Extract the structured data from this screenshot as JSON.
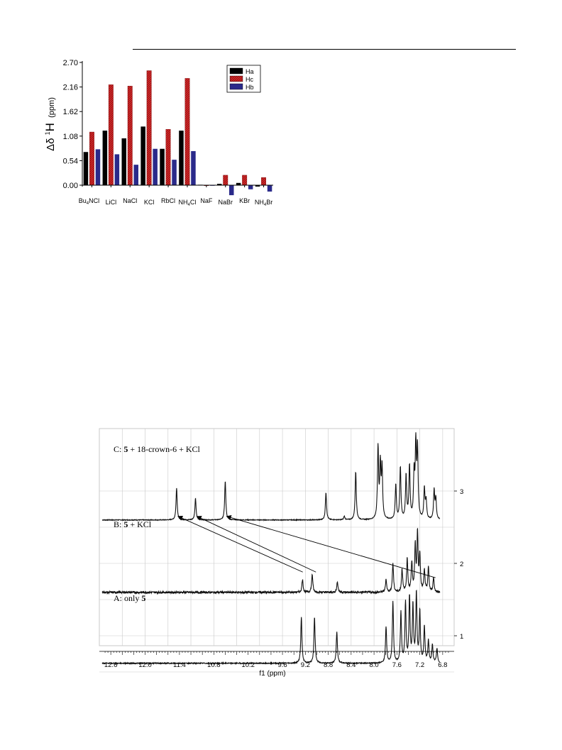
{
  "colors": {
    "Ha": "#000000",
    "Hc": "#d62728",
    "Hb": "#2a2a8a",
    "spectrum": "#111111",
    "grid": "#c9c9c9"
  },
  "chart_data": [
    {
      "type": "bar",
      "ylabel_main": "Δδ ",
      "ylabel_sup": "1",
      "ylabel_tail": "H",
      "ylabel_unit": "(ppm)",
      "ylim": [
        0,
        2.7
      ],
      "yticks": [
        "2.70",
        "2.16",
        "1.62",
        "1.08",
        "0.54",
        "0.00"
      ],
      "ytick_values": [
        2.7,
        2.16,
        1.62,
        1.08,
        0.54,
        0.0
      ],
      "categories": [
        {
          "main": "Bu",
          "sub": "4",
          "tail": "NCl"
        },
        {
          "main": "LiCl",
          "sub": "",
          "tail": ""
        },
        {
          "main": "NaCl",
          "sub": "",
          "tail": ""
        },
        {
          "main": "KCl",
          "sub": "",
          "tail": ""
        },
        {
          "main": "RbCl",
          "sub": "",
          "tail": ""
        },
        {
          "main": "NH",
          "sub": "4",
          "tail": "Cl"
        },
        {
          "main": "NaF",
          "sub": "",
          "tail": ""
        },
        {
          "main": "NaBr",
          "sub": "",
          "tail": ""
        },
        {
          "main": "KBr",
          "sub": "",
          "tail": ""
        },
        {
          "main": "NH",
          "sub": "4",
          "tail": "Br"
        }
      ],
      "series": [
        {
          "name": "Ha",
          "values": [
            0.73,
            1.2,
            1.03,
            1.29,
            0.8,
            1.2,
            0.01,
            0.03,
            0.05,
            -0.03
          ]
        },
        {
          "name": "Hc",
          "values": [
            1.17,
            2.21,
            2.18,
            2.52,
            1.23,
            2.35,
            0.0,
            0.22,
            0.22,
            0.17
          ]
        },
        {
          "name": "Hb",
          "values": [
            0.79,
            0.68,
            0.45,
            0.8,
            0.56,
            0.75,
            -0.01,
            -0.22,
            -0.09,
            -0.14
          ]
        }
      ],
      "legend_position": "top-right"
    },
    {
      "type": "line",
      "title": "",
      "xlabel": "f1 (ppm)",
      "xlim": [
        12.8,
        6.6
      ],
      "xticks": [
        "12.6",
        "12.0",
        "11.4",
        "10.8",
        "10.2",
        "9.6",
        "9.2",
        "8.8",
        "8.4",
        "8.0",
        "7.6",
        "7.2",
        "6.8"
      ],
      "xtick_values": [
        12.6,
        12.0,
        11.4,
        10.8,
        10.2,
        9.6,
        9.2,
        8.8,
        8.4,
        8.0,
        7.6,
        7.2,
        6.8
      ],
      "yticks": [
        "3",
        "2",
        "1"
      ],
      "yaxis_side": "right",
      "grid": true,
      "series": [
        {
          "label_prefix": "C: ",
          "label_bold": "5",
          "label_suffix": " + 18-crown-6 + KCl",
          "offset": 2.6,
          "noise": 0.005,
          "peaks": [
            {
              "ppm": 11.45,
              "h": 0.44
            },
            {
              "ppm": 11.12,
              "h": 0.3
            },
            {
              "ppm": 10.6,
              "h": 0.54
            },
            {
              "ppm": 8.84,
              "h": 0.38
            },
            {
              "ppm": 8.52,
              "h": 0.05
            },
            {
              "ppm": 8.32,
              "h": 0.67
            },
            {
              "ppm": 7.93,
              "h": 0.98
            },
            {
              "ppm": 7.89,
              "h": 0.72
            },
            {
              "ppm": 7.86,
              "h": 0.7
            },
            {
              "ppm": 7.62,
              "h": 0.48
            },
            {
              "ppm": 7.54,
              "h": 0.72
            },
            {
              "ppm": 7.44,
              "h": 0.6
            },
            {
              "ppm": 7.38,
              "h": 0.73
            },
            {
              "ppm": 7.3,
              "h": 0.6
            },
            {
              "ppm": 7.27,
              "h": 0.98
            },
            {
              "ppm": 7.24,
              "h": 0.95
            },
            {
              "ppm": 7.12,
              "h": 0.42
            },
            {
              "ppm": 7.09,
              "h": 0.25
            },
            {
              "ppm": 6.95,
              "h": 0.4
            },
            {
              "ppm": 6.92,
              "h": 0.28
            }
          ]
        },
        {
          "label_prefix": "B: ",
          "label_bold": "5",
          "label_suffix": " + KCl",
          "offset": 1.6,
          "noise": 0.014,
          "peaks": [
            {
              "ppm": 9.25,
              "h": 0.18
            },
            {
              "ppm": 9.08,
              "h": 0.25
            },
            {
              "ppm": 8.64,
              "h": 0.15
            },
            {
              "ppm": 7.79,
              "h": 0.18
            },
            {
              "ppm": 7.67,
              "h": 0.4
            },
            {
              "ppm": 7.51,
              "h": 0.32
            },
            {
              "ppm": 7.42,
              "h": 0.46
            },
            {
              "ppm": 7.34,
              "h": 0.4
            },
            {
              "ppm": 7.28,
              "h": 0.62
            },
            {
              "ppm": 7.24,
              "h": 0.78
            },
            {
              "ppm": 7.2,
              "h": 0.5
            },
            {
              "ppm": 7.12,
              "h": 0.3
            },
            {
              "ppm": 7.05,
              "h": 0.34
            },
            {
              "ppm": 6.96,
              "h": 0.2
            }
          ]
        },
        {
          "label_prefix": "A: only ",
          "label_bold": "5",
          "label_suffix": "",
          "offset": 0.62,
          "noise": 0.007,
          "peaks": [
            {
              "ppm": 9.27,
              "h": 0.64
            },
            {
              "ppm": 9.04,
              "h": 0.64
            },
            {
              "ppm": 8.65,
              "h": 0.44
            },
            {
              "ppm": 7.79,
              "h": 0.5
            },
            {
              "ppm": 7.67,
              "h": 0.85
            },
            {
              "ppm": 7.53,
              "h": 0.7
            },
            {
              "ppm": 7.45,
              "h": 0.82
            },
            {
              "ppm": 7.38,
              "h": 0.9
            },
            {
              "ppm": 7.32,
              "h": 0.78
            },
            {
              "ppm": 7.26,
              "h": 0.95
            },
            {
              "ppm": 7.2,
              "h": 0.7
            },
            {
              "ppm": 7.12,
              "h": 0.5
            },
            {
              "ppm": 7.05,
              "h": 0.3
            },
            {
              "ppm": 6.98,
              "h": 0.25
            },
            {
              "ppm": 6.9,
              "h": 0.2
            }
          ]
        }
      ],
      "shift_arrows": [
        {
          "from_ppm": 9.27,
          "to_ppm": 11.45
        },
        {
          "from_ppm": 9.04,
          "to_ppm": 11.12
        },
        {
          "from_ppm": 7.05,
          "to_ppm": 10.6
        }
      ]
    }
  ]
}
